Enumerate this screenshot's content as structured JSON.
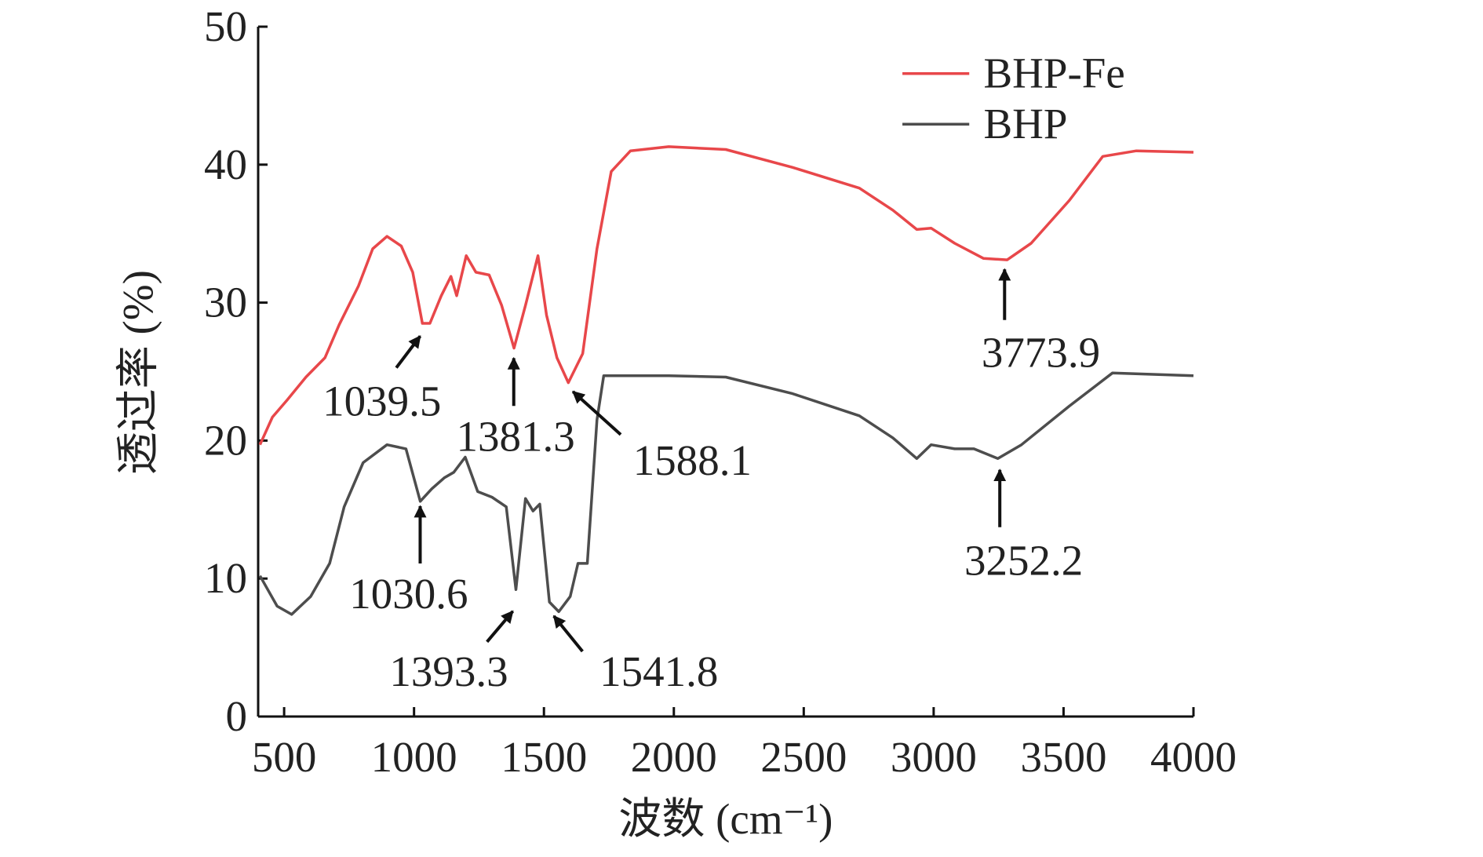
{
  "chart_data": {
    "type": "line",
    "xlabel": "波数 (cm⁻¹)",
    "ylabel": "透过率 (%)",
    "xlim": [
      400,
      4000
    ],
    "xticks": [
      500,
      1000,
      1500,
      2000,
      2500,
      3000,
      3500,
      4000
    ],
    "ylim": [
      0,
      50
    ],
    "yticks": [
      0,
      10,
      20,
      30,
      40,
      50
    ],
    "legend": "upper right",
    "series": [
      {
        "name": "BHP-Fe",
        "color": "#e8474a",
        "x": [
          407,
          455,
          510,
          584,
          657,
          712,
          786,
          841,
          896,
          951,
          995,
          1032,
          1061,
          1105,
          1142,
          1164,
          1201,
          1238,
          1289,
          1337,
          1385,
          1429,
          1477,
          1510,
          1550,
          1594,
          1649,
          1704,
          1759,
          1833,
          1980,
          2200,
          2457,
          2714,
          2843,
          2935,
          2990,
          3081,
          3192,
          3283,
          3375,
          3522,
          3651,
          3780,
          4000
        ],
        "values": [
          19.7,
          21.7,
          22.9,
          24.6,
          26.0,
          28.4,
          31.2,
          33.9,
          34.8,
          34.1,
          32.2,
          28.5,
          28.5,
          30.5,
          31.9,
          30.5,
          33.4,
          32.2,
          32.0,
          29.8,
          26.7,
          29.8,
          33.4,
          29.1,
          26.0,
          24.2,
          26.3,
          33.9,
          39.5,
          41.0,
          41.3,
          41.1,
          39.8,
          38.3,
          36.7,
          35.3,
          35.4,
          34.3,
          33.2,
          33.1,
          34.3,
          37.4,
          40.6,
          41.0,
          40.9
        ]
      },
      {
        "name": "BHP",
        "color": "#4d4d4d",
        "x": [
          407,
          473,
          529,
          602,
          675,
          731,
          804,
          896,
          969,
          1024,
          1068,
          1116,
          1153,
          1197,
          1245,
          1300,
          1355,
          1392,
          1429,
          1458,
          1484,
          1521,
          1557,
          1601,
          1631,
          1667,
          1704,
          1730,
          1980,
          2200,
          2457,
          2714,
          2843,
          2935,
          2990,
          3081,
          3155,
          3247,
          3338,
          3522,
          3688,
          4000
        ],
        "values": [
          10.2,
          8.0,
          7.4,
          8.7,
          11.1,
          15.2,
          18.4,
          19.7,
          19.4,
          15.6,
          16.5,
          17.3,
          17.7,
          18.8,
          16.3,
          15.9,
          15.2,
          9.2,
          15.8,
          14.9,
          15.4,
          8.3,
          7.6,
          8.7,
          11.1,
          11.1,
          21.5,
          24.7,
          24.7,
          24.6,
          23.4,
          21.8,
          20.2,
          18.7,
          19.7,
          19.4,
          19.4,
          18.7,
          19.7,
          22.5,
          24.9,
          24.7
        ]
      }
    ],
    "annotations": [
      "1039.5",
      "1381.3",
      "1588.1",
      "3773.9",
      "1030.6",
      "1393.3",
      "1541.8",
      "3252.2"
    ]
  }
}
